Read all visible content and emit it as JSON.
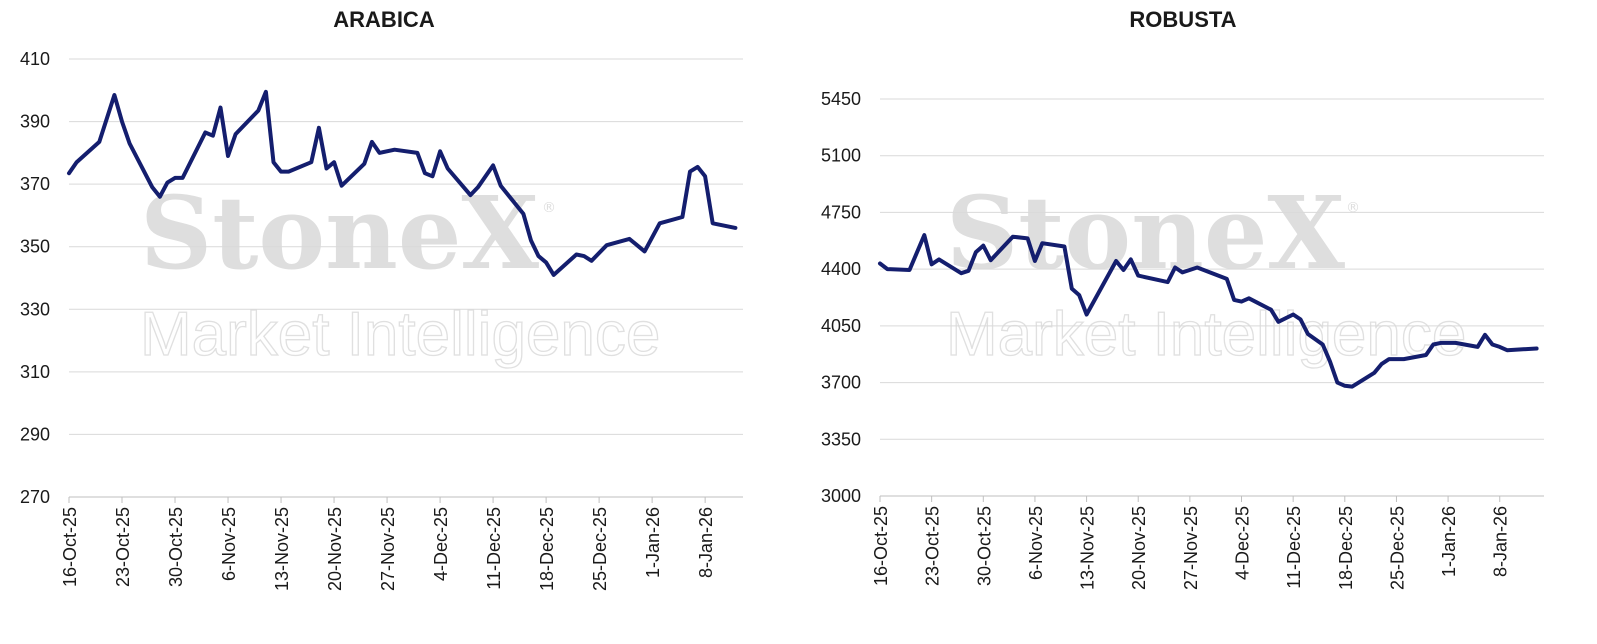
{
  "watermark": {
    "logo": "StoneX",
    "registered": "®",
    "subtitle": "Market Intelligence"
  },
  "chart_data": [
    {
      "type": "line",
      "title": "ARABICA",
      "xlabel": "",
      "ylabel": "",
      "x_start": "2025-10-16",
      "x_end": "2026-01-13",
      "ylim": [
        270,
        410
      ],
      "yticks": [
        270,
        290,
        310,
        330,
        350,
        370,
        390,
        410
      ],
      "xtick_labels": [
        {
          "date": "2025-10-16",
          "label": "16-Oct-25"
        },
        {
          "date": "2025-10-23",
          "label": "23-Oct-25"
        },
        {
          "date": "2025-10-30",
          "label": "30-Oct-25"
        },
        {
          "date": "2025-11-06",
          "label": "6-Nov-25"
        },
        {
          "date": "2025-11-13",
          "label": "13-Nov-25"
        },
        {
          "date": "2025-11-20",
          "label": "20-Nov-25"
        },
        {
          "date": "2025-11-27",
          "label": "27-Nov-25"
        },
        {
          "date": "2025-12-04",
          "label": "4-Dec-25"
        },
        {
          "date": "2025-12-11",
          "label": "11-Dec-25"
        },
        {
          "date": "2025-12-18",
          "label": "18-Dec-25"
        },
        {
          "date": "2025-12-25",
          "label": "25-Dec-25"
        },
        {
          "date": "2026-01-01",
          "label": "1-Jan-26"
        },
        {
          "date": "2026-01-08",
          "label": "8-Jan-26"
        }
      ],
      "grid": "horizontal",
      "series": [
        {
          "color": "#141e6e",
          "points": [
            [
              "2025-10-16",
              373.5
            ],
            [
              "2025-10-17",
              377
            ],
            [
              "2025-10-20",
              383.5
            ],
            [
              "2025-10-22",
              398.5
            ],
            [
              "2025-10-23",
              390
            ],
            [
              "2025-10-24",
              383
            ],
            [
              "2025-10-27",
              369
            ],
            [
              "2025-10-28",
              366
            ],
            [
              "2025-10-29",
              370.5
            ],
            [
              "2025-10-30",
              372
            ],
            [
              "2025-10-31",
              372
            ],
            [
              "2025-11-03",
              386.5
            ],
            [
              "2025-11-04",
              385.5
            ],
            [
              "2025-11-05",
              394.5
            ],
            [
              "2025-11-06",
              379
            ],
            [
              "2025-11-07",
              386
            ],
            [
              "2025-11-10",
              393.5
            ],
            [
              "2025-11-11",
              399.5
            ],
            [
              "2025-11-12",
              377
            ],
            [
              "2025-11-13",
              374
            ],
            [
              "2025-11-14",
              374
            ],
            [
              "2025-11-17",
              377
            ],
            [
              "2025-11-18",
              388
            ],
            [
              "2025-11-19",
              375
            ],
            [
              "2025-11-20",
              377
            ],
            [
              "2025-11-21",
              369.5
            ],
            [
              "2025-11-24",
              376.5
            ],
            [
              "2025-11-25",
              383.5
            ],
            [
              "2025-11-26",
              380
            ],
            [
              "2025-11-28",
              381
            ],
            [
              "2025-12-01",
              380
            ],
            [
              "2025-12-02",
              373.5
            ],
            [
              "2025-12-03",
              372.5
            ],
            [
              "2025-12-04",
              380.5
            ],
            [
              "2025-12-05",
              375
            ],
            [
              "2025-12-08",
              366.5
            ],
            [
              "2025-12-09",
              369
            ],
            [
              "2025-12-11",
              376
            ],
            [
              "2025-12-12",
              369.5
            ],
            [
              "2025-12-15",
              360.5
            ],
            [
              "2025-12-16",
              352
            ],
            [
              "2025-12-17",
              347
            ],
            [
              "2025-12-18",
              345
            ],
            [
              "2025-12-19",
              341
            ],
            [
              "2025-12-22",
              347.5
            ],
            [
              "2025-12-23",
              347
            ],
            [
              "2025-12-24",
              345.5
            ],
            [
              "2025-12-26",
              350.5
            ],
            [
              "2025-12-29",
              352.5
            ],
            [
              "2025-12-31",
              348.5
            ],
            [
              "2026-01-02",
              357.5
            ],
            [
              "2026-01-05",
              359.5
            ],
            [
              "2026-01-06",
              374
            ],
            [
              "2026-01-07",
              375.5
            ],
            [
              "2026-01-08",
              372.5
            ],
            [
              "2026-01-09",
              357.5
            ],
            [
              "2026-01-12",
              356
            ]
          ]
        }
      ]
    },
    {
      "type": "line",
      "title": "ROBUSTA",
      "xlabel": "",
      "ylabel": "",
      "x_start": "2025-10-16",
      "x_end": "2026-01-14",
      "ylim": [
        3000,
        5450
      ],
      "yticks": [
        3000,
        3350,
        3700,
        4050,
        4400,
        4750,
        5100,
        5450
      ],
      "xtick_labels": [
        {
          "date": "2025-10-16",
          "label": "16-Oct-25"
        },
        {
          "date": "2025-10-23",
          "label": "23-Oct-25"
        },
        {
          "date": "2025-10-30",
          "label": "30-Oct-25"
        },
        {
          "date": "2025-11-06",
          "label": "6-Nov-25"
        },
        {
          "date": "2025-11-13",
          "label": "13-Nov-25"
        },
        {
          "date": "2025-11-20",
          "label": "20-Nov-25"
        },
        {
          "date": "2025-11-27",
          "label": "27-Nov-25"
        },
        {
          "date": "2025-12-04",
          "label": "4-Dec-25"
        },
        {
          "date": "2025-12-11",
          "label": "11-Dec-25"
        },
        {
          "date": "2025-12-18",
          "label": "18-Dec-25"
        },
        {
          "date": "2025-12-25",
          "label": "25-Dec-25"
        },
        {
          "date": "2026-01-01",
          "label": "1-Jan-26"
        },
        {
          "date": "2026-01-08",
          "label": "8-Jan-26"
        }
      ],
      "grid": "horizontal",
      "series": [
        {
          "color": "#141e6e",
          "points": [
            [
              "2025-10-16",
              4435
            ],
            [
              "2025-10-17",
              4400
            ],
            [
              "2025-10-20",
              4395
            ],
            [
              "2025-10-22",
              4610
            ],
            [
              "2025-10-23",
              4430
            ],
            [
              "2025-10-24",
              4460
            ],
            [
              "2025-10-27",
              4375
            ],
            [
              "2025-10-28",
              4390
            ],
            [
              "2025-10-29",
              4505
            ],
            [
              "2025-10-30",
              4545
            ],
            [
              "2025-10-31",
              4455
            ],
            [
              "2025-11-03",
              4600
            ],
            [
              "2025-11-05",
              4590
            ],
            [
              "2025-11-06",
              4450
            ],
            [
              "2025-11-07",
              4560
            ],
            [
              "2025-11-10",
              4540
            ],
            [
              "2025-11-11",
              4280
            ],
            [
              "2025-11-12",
              4240
            ],
            [
              "2025-11-13",
              4120
            ],
            [
              "2025-11-17",
              4450
            ],
            [
              "2025-11-18",
              4395
            ],
            [
              "2025-11-19",
              4460
            ],
            [
              "2025-11-20",
              4360
            ],
            [
              "2025-11-24",
              4320
            ],
            [
              "2025-11-25",
              4410
            ],
            [
              "2025-11-26",
              4380
            ],
            [
              "2025-11-28",
              4410
            ],
            [
              "2025-12-02",
              4340
            ],
            [
              "2025-12-03",
              4210
            ],
            [
              "2025-12-04",
              4200
            ],
            [
              "2025-12-05",
              4220
            ],
            [
              "2025-12-08",
              4150
            ],
            [
              "2025-12-09",
              4075
            ],
            [
              "2025-12-11",
              4120
            ],
            [
              "2025-12-12",
              4090
            ],
            [
              "2025-12-13",
              4000
            ],
            [
              "2025-12-15",
              3935
            ],
            [
              "2025-12-16",
              3830
            ],
            [
              "2025-12-17",
              3700
            ],
            [
              "2025-12-18",
              3680
            ],
            [
              "2025-12-19",
              3675
            ],
            [
              "2025-12-22",
              3760
            ],
            [
              "2025-12-23",
              3815
            ],
            [
              "2025-12-24",
              3845
            ],
            [
              "2025-12-26",
              3845
            ],
            [
              "2025-12-29",
              3870
            ],
            [
              "2025-12-30",
              3935
            ],
            [
              "2025-12-31",
              3945
            ],
            [
              "2026-01-02",
              3945
            ],
            [
              "2026-01-05",
              3920
            ],
            [
              "2026-01-06",
              3995
            ],
            [
              "2026-01-07",
              3935
            ],
            [
              "2026-01-08",
              3920
            ],
            [
              "2026-01-09",
              3900
            ],
            [
              "2026-01-13",
              3910
            ]
          ]
        }
      ]
    }
  ]
}
